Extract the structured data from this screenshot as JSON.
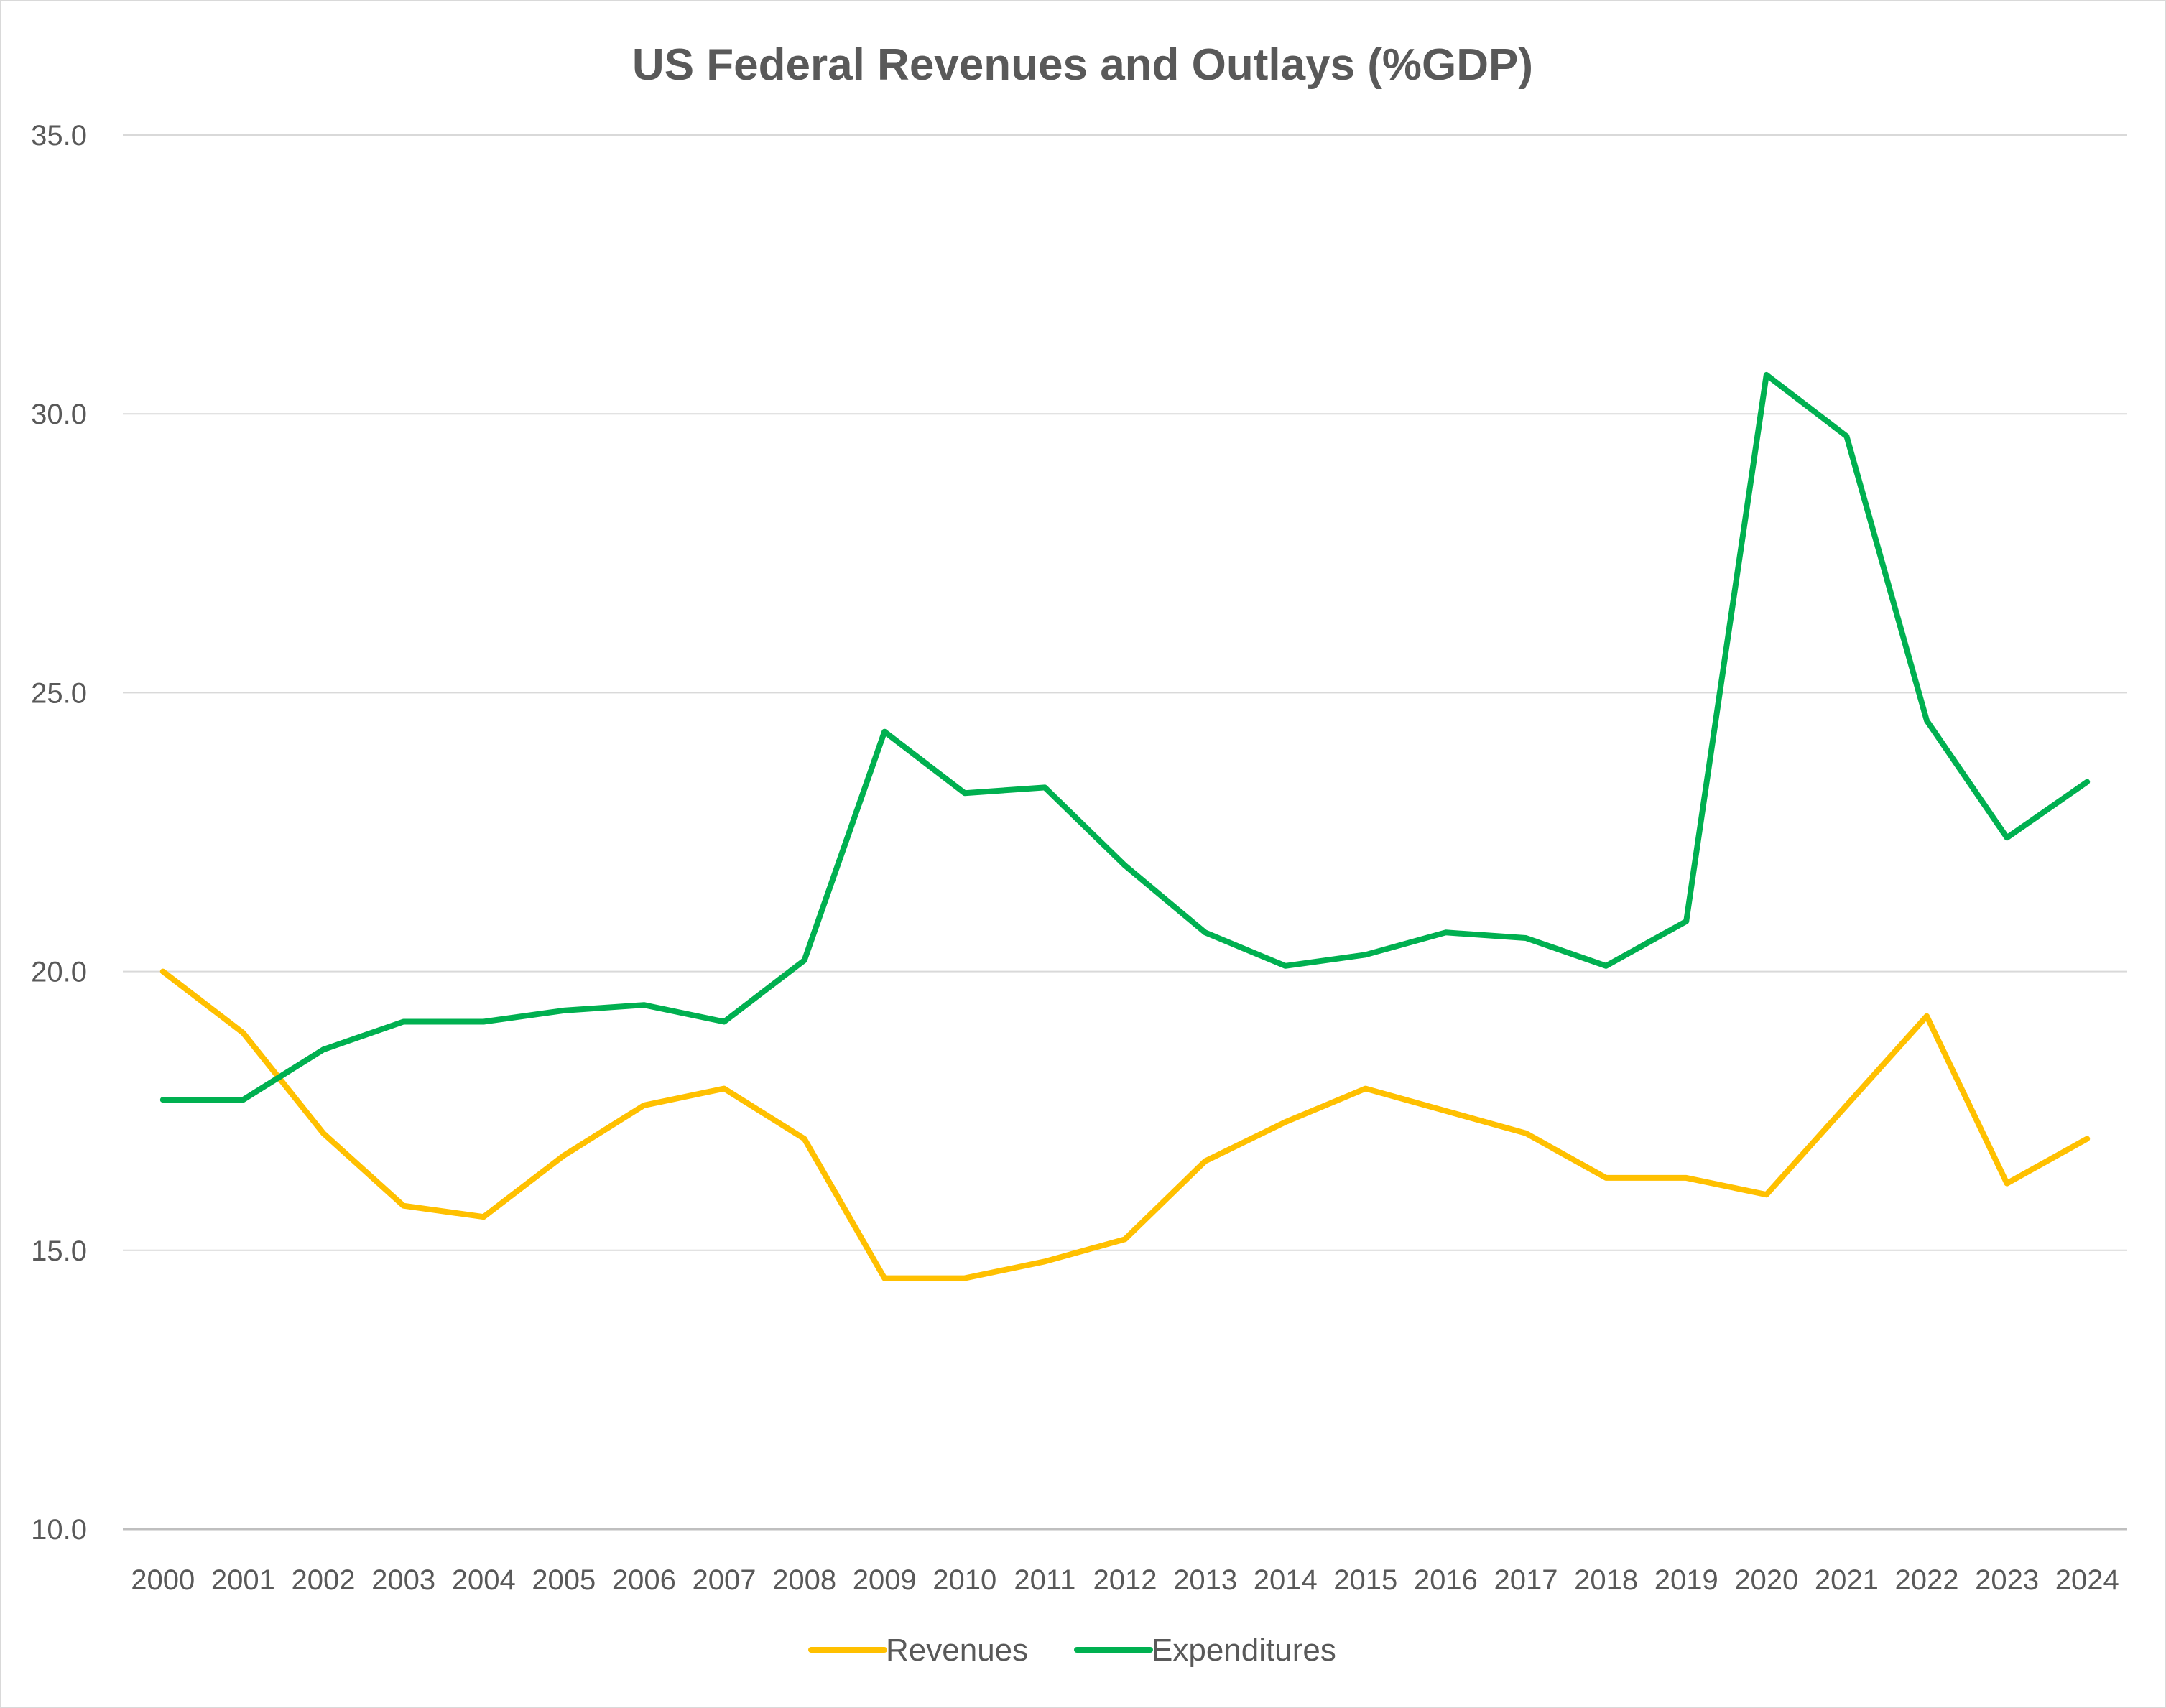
{
  "chart_data": {
    "type": "line",
    "title": "US Federal Revenues and Outlays (%GDP)",
    "xlabel": "",
    "ylabel": "",
    "categories": [
      "2000",
      "2001",
      "2002",
      "2003",
      "2004",
      "2005",
      "2006",
      "2007",
      "2008",
      "2009",
      "2010",
      "2011",
      "2012",
      "2013",
      "2014",
      "2015",
      "2016",
      "2017",
      "2018",
      "2019",
      "2020",
      "2021",
      "2022",
      "2023",
      "2024"
    ],
    "ylim": [
      10.0,
      35.0
    ],
    "yticks": [
      "10.0",
      "15.0",
      "20.0",
      "25.0",
      "30.0",
      "35.0"
    ],
    "grid": true,
    "legend_position": "bottom",
    "series": [
      {
        "name": "Revenues",
        "color": "#FFC000",
        "values": [
          20.0,
          18.9,
          17.1,
          15.8,
          15.6,
          16.7,
          17.6,
          17.9,
          17.0,
          14.5,
          14.5,
          14.8,
          15.2,
          16.6,
          17.3,
          17.9,
          17.5,
          17.1,
          16.3,
          16.3,
          16.0,
          17.6,
          19.2,
          16.2,
          17.0
        ]
      },
      {
        "name": "Expenditures",
        "color": "#00B050",
        "values": [
          17.7,
          17.7,
          18.6,
          19.1,
          19.1,
          19.3,
          19.4,
          19.1,
          20.2,
          24.3,
          23.2,
          23.3,
          21.9,
          20.7,
          20.1,
          20.3,
          20.7,
          20.6,
          20.1,
          20.9,
          30.7,
          29.6,
          24.5,
          22.4,
          23.4
        ]
      }
    ]
  }
}
